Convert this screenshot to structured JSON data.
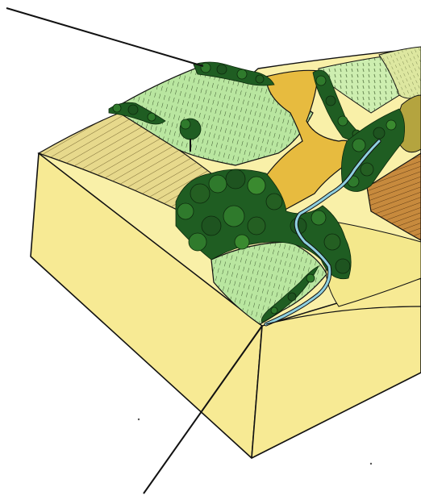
{
  "colors": {
    "background": "#ffffff",
    "soil_block_side": "#f7ea94",
    "soil_block_top_light": "#f9f0a8",
    "wheat_field": "#e7d98c",
    "light_green_field": "#b9e6a0",
    "pale_green_field": "#cdeeb0",
    "yellow_green_field": "#dde7a0",
    "mustard_field": "#e7bb3f",
    "ploughed_field": "#c78a3d",
    "olive_field": "#b4a43f",
    "dark_forest": "#1f5d22",
    "forest_highlight": "#3a8a2f",
    "river": "#8fd0e0",
    "outline": "#111111"
  },
  "elements": {
    "pointer_lines": 2,
    "trees": "hedgerow-and-riparian-forest"
  }
}
